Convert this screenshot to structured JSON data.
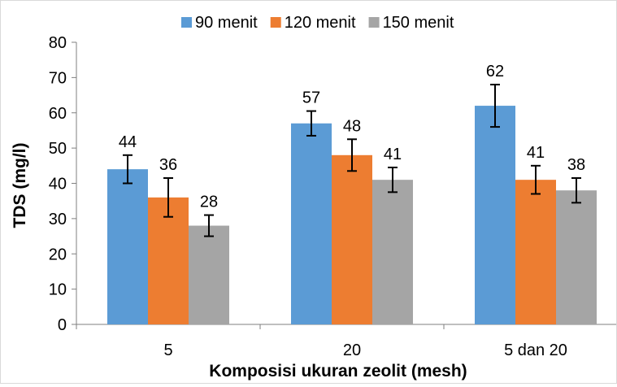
{
  "chart_data": {
    "type": "bar",
    "title": "",
    "xlabel": "Komposisi ukuran zeolit (mesh)",
    "ylabel": "TDS (mg/l)",
    "ylim": [
      0,
      80
    ],
    "yticks": [
      0,
      10,
      20,
      30,
      40,
      50,
      60,
      70,
      80
    ],
    "categories": [
      "5",
      "20",
      "5 dan 20"
    ],
    "grid": false,
    "legend_position": "top",
    "series": [
      {
        "name": "90 menit",
        "color": "#5b9bd5",
        "values": [
          44,
          57,
          62
        ],
        "data_labels": [
          "44",
          "57",
          "62"
        ],
        "error": [
          4,
          3.5,
          6
        ]
      },
      {
        "name": "120 menit",
        "color": "#ed7d31",
        "values": [
          36,
          48,
          41
        ],
        "data_labels": [
          "36",
          "48",
          "41"
        ],
        "error": [
          5.5,
          4.5,
          4
        ]
      },
      {
        "name": "150 menit",
        "color": "#a5a5a5",
        "values": [
          28,
          41,
          38
        ],
        "data_labels": [
          "28",
          "41",
          "38"
        ],
        "error": [
          3,
          3.5,
          3.5
        ]
      }
    ]
  }
}
